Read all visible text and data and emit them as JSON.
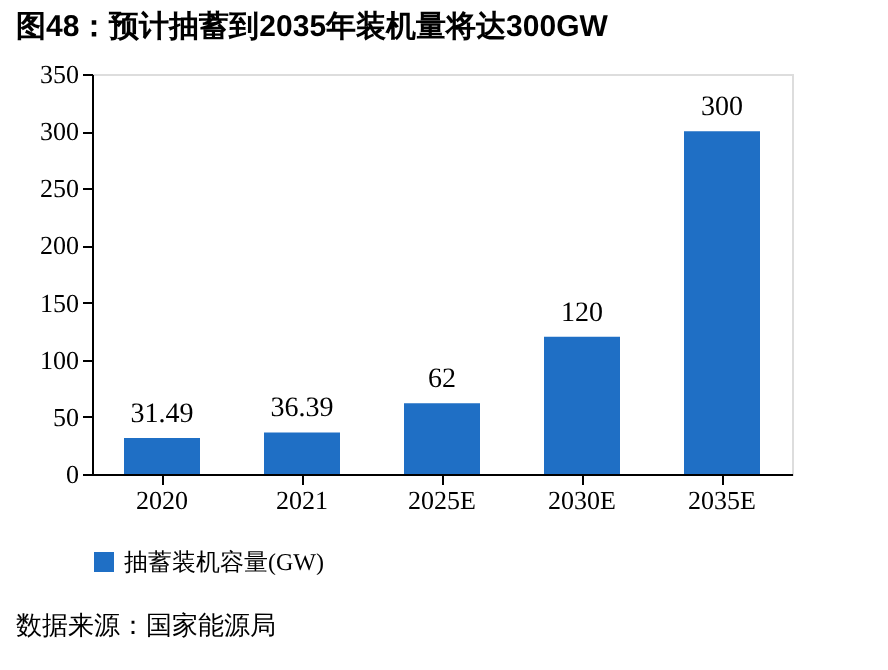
{
  "chart_data": {
    "type": "bar",
    "title": "图48：预计抽蓄到2035年装机量将达300GW",
    "categories": [
      "2020",
      "2021",
      "2025E",
      "2030E",
      "2035E"
    ],
    "series": [
      {
        "name": "抽蓄装机容量(GW)",
        "color": "#1f6fc5",
        "values": [
          31.49,
          36.39,
          62,
          120,
          300
        ]
      }
    ],
    "ylim": [
      0,
      350
    ],
    "yticks": [
      0,
      50,
      100,
      150,
      200,
      250,
      300,
      350
    ],
    "grid": false,
    "legend": "bottom",
    "data_labels": true,
    "annotations": [
      "数据来源：国家能源局"
    ]
  }
}
